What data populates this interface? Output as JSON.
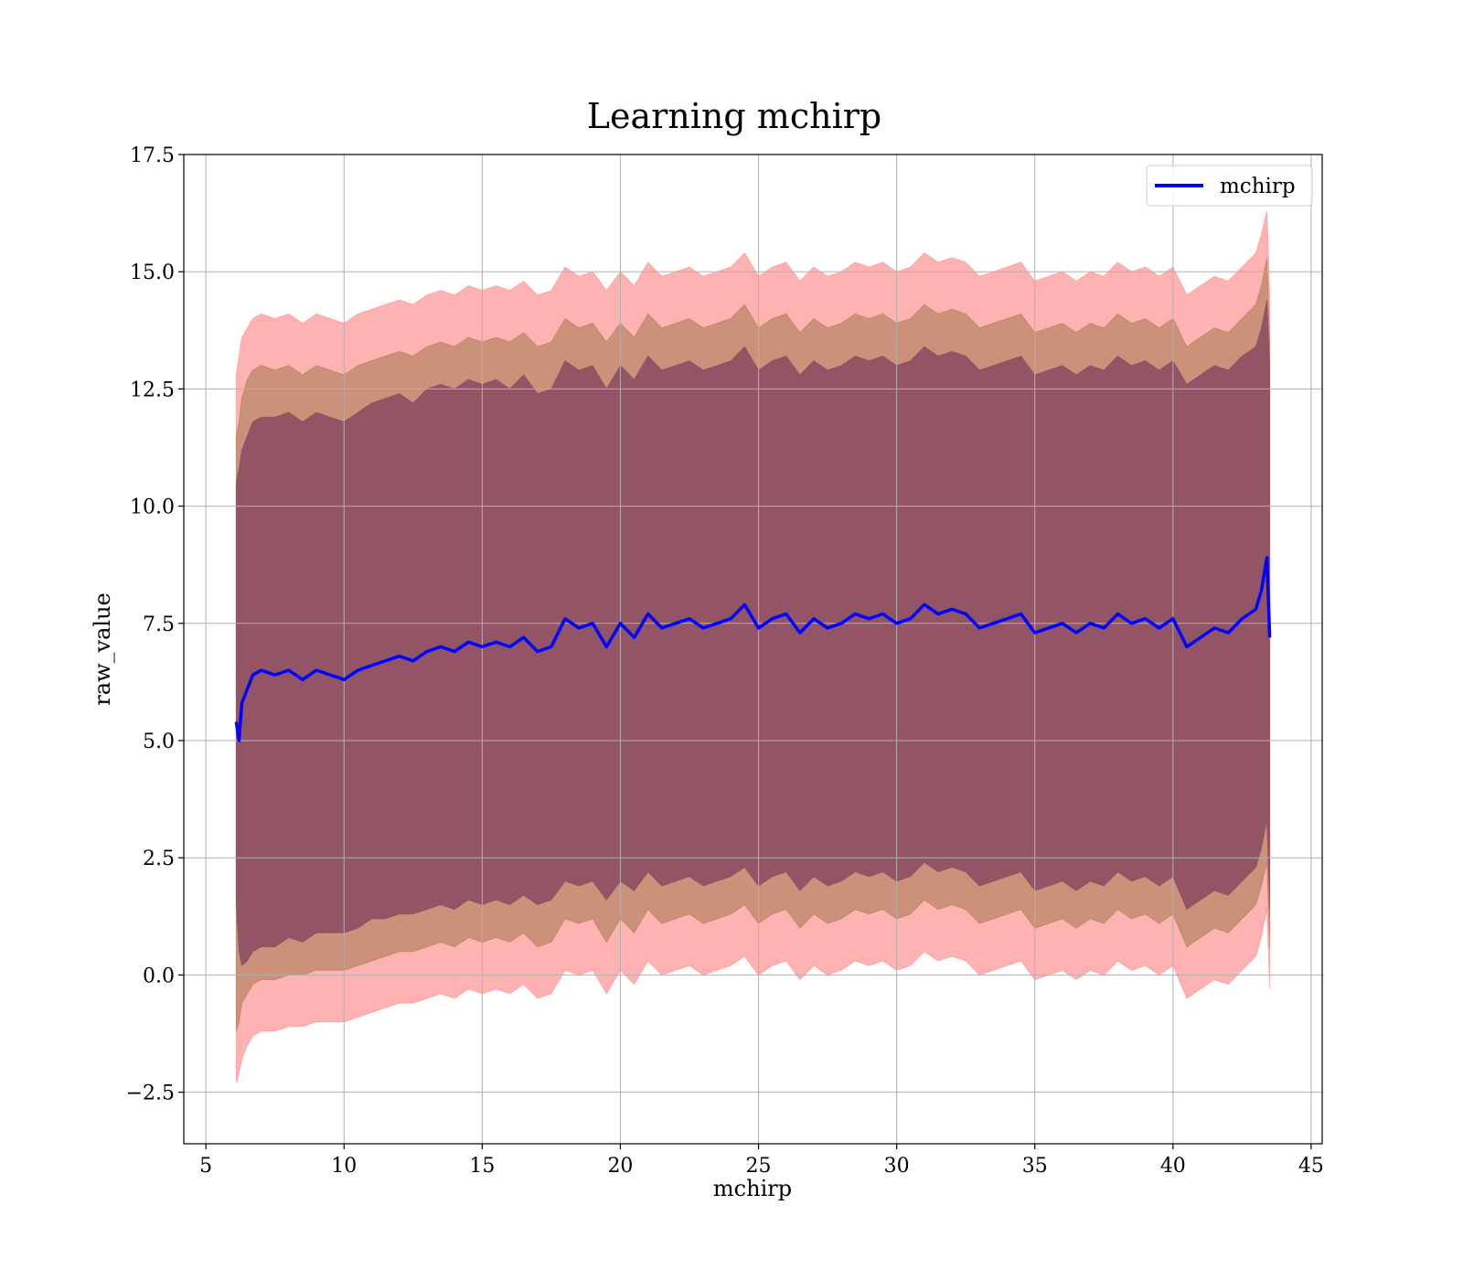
{
  "chart_data": {
    "type": "line",
    "title": "Learning mchirp",
    "xlabel": "mchirp",
    "ylabel": "raw_value",
    "xlim": [
      4.2,
      45.4
    ],
    "ylim": [
      -3.6,
      17.5
    ],
    "x_ticks": [
      5,
      10,
      15,
      20,
      25,
      30,
      35,
      40,
      45
    ],
    "y_ticks": [
      -2.5,
      0.0,
      2.5,
      5.0,
      7.5,
      10.0,
      12.5,
      15.0,
      17.5
    ],
    "x_tick_labels": [
      "5",
      "10",
      "15",
      "20",
      "25",
      "30",
      "35",
      "40",
      "45"
    ],
    "y_tick_labels": [
      "−2.5",
      "0.0",
      "2.5",
      "5.0",
      "7.5",
      "10.0",
      "12.5",
      "15.0",
      "17.5"
    ],
    "grid": true,
    "legend": {
      "position": "top-right",
      "entries": [
        "mchirp"
      ]
    },
    "colors": {
      "mean_line": "#0000ff",
      "band_outer": "#ff7f7f",
      "band_middle": "#a0784a",
      "band_inner": "#804060"
    },
    "series": [
      {
        "name": "mchirp",
        "x": [
          6.1,
          6.2,
          6.3,
          6.5,
          6.7,
          7.0,
          7.5,
          8.0,
          8.5,
          9.0,
          9.5,
          10.0,
          10.5,
          11.0,
          11.5,
          12.0,
          12.5,
          13.0,
          13.5,
          14.0,
          14.5,
          15.0,
          15.5,
          16.0,
          16.5,
          17.0,
          17.5,
          18.0,
          18.5,
          19.0,
          19.5,
          20.0,
          20.5,
          21.0,
          21.5,
          22.0,
          22.5,
          23.0,
          23.5,
          24.0,
          24.5,
          25.0,
          25.5,
          26.0,
          26.5,
          27.0,
          27.5,
          28.0,
          28.5,
          29.0,
          29.5,
          30.0,
          30.5,
          31.0,
          31.5,
          32.0,
          32.5,
          33.0,
          33.5,
          34.0,
          34.5,
          35.0,
          35.5,
          36.0,
          36.5,
          37.0,
          37.5,
          38.0,
          38.5,
          39.0,
          39.5,
          40.0,
          40.5,
          41.0,
          41.5,
          42.0,
          42.5,
          43.0,
          43.2,
          43.4,
          43.5
        ],
        "mean": [
          5.4,
          5.0,
          5.8,
          6.1,
          6.4,
          6.5,
          6.4,
          6.5,
          6.3,
          6.5,
          6.4,
          6.3,
          6.5,
          6.6,
          6.7,
          6.8,
          6.7,
          6.9,
          7.0,
          6.9,
          7.1,
          7.0,
          7.1,
          7.0,
          7.2,
          6.9,
          7.0,
          7.6,
          7.4,
          7.5,
          7.0,
          7.5,
          7.2,
          7.7,
          7.4,
          7.5,
          7.6,
          7.4,
          7.5,
          7.6,
          7.9,
          7.4,
          7.6,
          7.7,
          7.3,
          7.6,
          7.4,
          7.5,
          7.7,
          7.6,
          7.7,
          7.5,
          7.6,
          7.9,
          7.7,
          7.8,
          7.7,
          7.4,
          7.5,
          7.6,
          7.7,
          7.3,
          7.4,
          7.5,
          7.3,
          7.5,
          7.4,
          7.7,
          7.5,
          7.6,
          7.4,
          7.6,
          7.0,
          7.2,
          7.4,
          7.3,
          7.6,
          7.8,
          8.2,
          8.9,
          7.2
        ],
        "band_1sd": {
          "lower": [
            1.5,
            0.5,
            0.2,
            0.3,
            0.5,
            0.6,
            0.6,
            0.8,
            0.7,
            0.9,
            0.9,
            0.9,
            1.0,
            1.2,
            1.2,
            1.3,
            1.3,
            1.4,
            1.5,
            1.4,
            1.6,
            1.5,
            1.6,
            1.5,
            1.7,
            1.5,
            1.6,
            2.0,
            1.9,
            2.0,
            1.6,
            2.0,
            1.8,
            2.2,
            1.9,
            2.0,
            2.1,
            1.9,
            2.0,
            2.1,
            2.3,
            1.9,
            2.1,
            2.2,
            1.8,
            2.1,
            1.9,
            2.0,
            2.2,
            2.1,
            2.2,
            2.0,
            2.1,
            2.4,
            2.2,
            2.3,
            2.2,
            1.9,
            2.0,
            2.1,
            2.2,
            1.8,
            1.9,
            2.0,
            1.8,
            2.0,
            1.9,
            2.2,
            2.0,
            2.1,
            1.9,
            2.1,
            1.4,
            1.6,
            1.8,
            1.7,
            2.0,
            2.3,
            2.7,
            3.3,
            1.4
          ],
          "upper": [
            10.5,
            10.8,
            11.2,
            11.5,
            11.8,
            11.9,
            11.9,
            12.0,
            11.8,
            12.0,
            11.9,
            11.8,
            12.0,
            12.2,
            12.3,
            12.4,
            12.2,
            12.5,
            12.6,
            12.5,
            12.7,
            12.6,
            12.7,
            12.5,
            12.8,
            12.4,
            12.5,
            13.1,
            12.9,
            13.0,
            12.5,
            13.0,
            12.7,
            13.2,
            12.9,
            13.0,
            13.1,
            12.9,
            13.0,
            13.1,
            13.4,
            12.9,
            13.1,
            13.2,
            12.8,
            13.1,
            12.9,
            13.0,
            13.2,
            13.1,
            13.2,
            13.0,
            13.1,
            13.4,
            13.2,
            13.3,
            13.2,
            12.9,
            13.0,
            13.1,
            13.2,
            12.8,
            12.9,
            13.0,
            12.8,
            13.0,
            12.9,
            13.2,
            13.0,
            13.1,
            12.9,
            13.1,
            12.6,
            12.8,
            13.0,
            12.9,
            13.2,
            13.4,
            13.8,
            14.4,
            13.0
          ]
        },
        "band_2sd": {
          "lower": [
            -1.2,
            -1.0,
            -0.6,
            -0.4,
            -0.2,
            -0.1,
            -0.1,
            0.0,
            0.0,
            0.1,
            0.1,
            0.1,
            0.2,
            0.3,
            0.4,
            0.5,
            0.5,
            0.6,
            0.7,
            0.6,
            0.8,
            0.7,
            0.8,
            0.7,
            0.9,
            0.6,
            0.7,
            1.2,
            1.1,
            1.2,
            0.7,
            1.2,
            0.9,
            1.4,
            1.1,
            1.2,
            1.3,
            1.1,
            1.2,
            1.3,
            1.5,
            1.1,
            1.3,
            1.4,
            1.0,
            1.3,
            1.1,
            1.2,
            1.4,
            1.3,
            1.4,
            1.2,
            1.3,
            1.6,
            1.4,
            1.5,
            1.4,
            1.1,
            1.2,
            1.3,
            1.4,
            1.0,
            1.1,
            1.2,
            1.0,
            1.2,
            1.1,
            1.4,
            1.2,
            1.3,
            1.1,
            1.3,
            0.6,
            0.8,
            1.0,
            0.9,
            1.2,
            1.5,
            1.9,
            2.4,
            0.6
          ],
          "upper": [
            11.5,
            11.8,
            12.3,
            12.7,
            12.9,
            13.0,
            12.9,
            13.0,
            12.8,
            13.0,
            12.9,
            12.8,
            13.0,
            13.1,
            13.2,
            13.3,
            13.2,
            13.4,
            13.5,
            13.4,
            13.6,
            13.5,
            13.6,
            13.5,
            13.7,
            13.4,
            13.5,
            14.0,
            13.8,
            13.9,
            13.5,
            13.9,
            13.6,
            14.1,
            13.8,
            13.9,
            14.0,
            13.8,
            13.9,
            14.0,
            14.3,
            13.8,
            14.0,
            14.1,
            13.7,
            14.0,
            13.8,
            13.9,
            14.1,
            14.0,
            14.1,
            13.9,
            14.0,
            14.3,
            14.1,
            14.2,
            14.1,
            13.8,
            13.9,
            14.0,
            14.1,
            13.7,
            13.8,
            13.9,
            13.7,
            13.9,
            13.8,
            14.1,
            13.9,
            14.0,
            13.8,
            14.0,
            13.4,
            13.6,
            13.8,
            13.7,
            14.0,
            14.3,
            14.7,
            15.3,
            13.5
          ]
        },
        "band_3sd": {
          "lower": [
            -2.3,
            -2.1,
            -1.8,
            -1.5,
            -1.3,
            -1.2,
            -1.2,
            -1.1,
            -1.1,
            -1.0,
            -1.0,
            -1.0,
            -0.9,
            -0.8,
            -0.7,
            -0.6,
            -0.6,
            -0.5,
            -0.4,
            -0.5,
            -0.3,
            -0.4,
            -0.3,
            -0.4,
            -0.2,
            -0.5,
            -0.4,
            0.1,
            0.0,
            0.1,
            -0.4,
            0.1,
            -0.2,
            0.3,
            0.0,
            0.1,
            0.2,
            0.0,
            0.1,
            0.2,
            0.4,
            0.0,
            0.2,
            0.3,
            -0.1,
            0.2,
            0.0,
            0.1,
            0.3,
            0.2,
            0.3,
            0.1,
            0.2,
            0.5,
            0.3,
            0.4,
            0.3,
            0.0,
            0.1,
            0.2,
            0.3,
            -0.1,
            0.0,
            0.1,
            -0.1,
            0.1,
            0.0,
            0.3,
            0.1,
            0.2,
            0.0,
            0.2,
            -0.5,
            -0.3,
            -0.1,
            -0.2,
            0.1,
            0.4,
            0.8,
            1.4,
            -0.3
          ],
          "upper": [
            12.8,
            13.2,
            13.6,
            13.8,
            14.0,
            14.1,
            14.0,
            14.1,
            13.9,
            14.1,
            14.0,
            13.9,
            14.1,
            14.2,
            14.3,
            14.4,
            14.3,
            14.5,
            14.6,
            14.5,
            14.7,
            14.6,
            14.7,
            14.6,
            14.8,
            14.5,
            14.6,
            15.1,
            14.9,
            15.0,
            14.6,
            15.0,
            14.7,
            15.2,
            14.9,
            15.0,
            15.1,
            14.9,
            15.0,
            15.1,
            15.4,
            14.9,
            15.1,
            15.2,
            14.8,
            15.1,
            14.9,
            15.0,
            15.2,
            15.1,
            15.2,
            15.0,
            15.1,
            15.4,
            15.2,
            15.3,
            15.2,
            14.9,
            15.0,
            15.1,
            15.2,
            14.8,
            14.9,
            15.0,
            14.8,
            15.0,
            14.9,
            15.2,
            15.0,
            15.1,
            14.9,
            15.1,
            14.5,
            14.7,
            14.9,
            14.8,
            15.1,
            15.4,
            15.8,
            16.3,
            14.5
          ]
        }
      }
    ]
  }
}
